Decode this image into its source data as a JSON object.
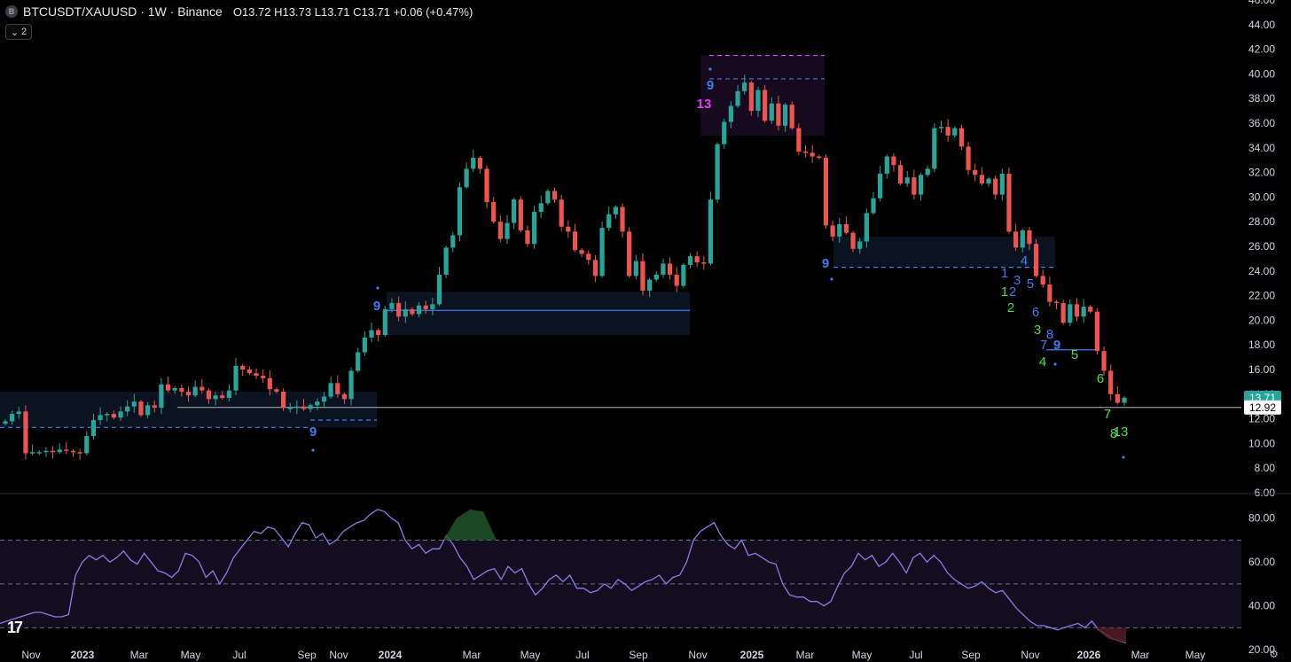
{
  "header": {
    "symbol_badge": "B",
    "symbol": "BTCUSDT/XAUUSD · 1W · Binance",
    "open_label": "O",
    "open": "13.72",
    "high_label": "H",
    "high": "13.73",
    "low_label": "L",
    "low": "13.71",
    "close_label": "C",
    "close": "13.71",
    "change": "+0.06 (+0.47%)",
    "collapse_count": "2"
  },
  "logo": "17",
  "colors": {
    "up": "#26a69a",
    "down": "#ef5350",
    "rsi": "#8c7ae6",
    "fib_blue": "#3d7cf4",
    "td_magenta": "#e040fb",
    "td_green": "#4cdf3f",
    "price_tag_green": "#26a69a"
  },
  "price_axis": [
    "46.00",
    "44.00",
    "42.00",
    "40.00",
    "38.00",
    "36.00",
    "34.00",
    "32.00",
    "30.00",
    "28.00",
    "26.00",
    "24.00",
    "22.00",
    "20.00",
    "18.00",
    "16.00",
    "14.00",
    "12.00",
    "10.00",
    "8.00",
    "6.00"
  ],
  "price_tags": {
    "current": "13.71",
    "line": "12.92"
  },
  "rsi_axis": [
    "80.00",
    "60.00",
    "40.00",
    "20.00"
  ],
  "time_axis": [
    "Nov",
    "2023",
    "Mar",
    "May",
    "Jul",
    "Sep",
    "Nov",
    "2024",
    "Mar",
    "May",
    "Jul",
    "Sep",
    "Nov",
    "2025",
    "Mar",
    "May",
    "Jul",
    "Sep",
    "Nov",
    "2026",
    "Mar",
    "May"
  ],
  "chart_data": {
    "type": "candlestick",
    "title": "BTCUSDT/XAUUSD · 1W · Binance",
    "ylim": [
      6,
      46
    ],
    "x_labels": [
      "Nov",
      "2023",
      "Mar",
      "May",
      "Jul",
      "Sep",
      "Nov",
      "2024",
      "Mar",
      "May",
      "Jul",
      "Sep",
      "Nov",
      "2025",
      "Mar",
      "May",
      "Jul",
      "Sep",
      "Nov",
      "2026",
      "Mar",
      "May"
    ],
    "closes": [
      11.8,
      12.4,
      12.6,
      9.2,
      9.3,
      9.3,
      9.4,
      9.3,
      9.5,
      9.4,
      9.3,
      9.2,
      10.6,
      11.9,
      12.3,
      12.4,
      12.1,
      12.6,
      13.0,
      13.4,
      12.3,
      13.1,
      12.9,
      14.8,
      14.3,
      14.5,
      14.2,
      13.9,
      14.6,
      14.3,
      13.6,
      13.9,
      13.7,
      14.3,
      16.3,
      16.0,
      15.7,
      15.5,
      15.3,
      14.4,
      14.2,
      12.9,
      12.9,
      13.0,
      12.8,
      13.1,
      13.4,
      13.8,
      14.9,
      14.0,
      13.6,
      15.9,
      17.4,
      18.6,
      19.2,
      18.8,
      20.9,
      21.4,
      20.3,
      20.9,
      20.5,
      21.2,
      20.9,
      21.3,
      23.7,
      25.9,
      26.9,
      30.8,
      32.3,
      33.2,
      32.3,
      29.6,
      28.0,
      26.6,
      27.9,
      29.8,
      27.3,
      26.2,
      28.8,
      29.5,
      30.5,
      29.8,
      27.6,
      27.2,
      25.7,
      25.4,
      24.9,
      23.6,
      27.5,
      28.6,
      29.2,
      27.2,
      23.6,
      24.8,
      22.4,
      23.3,
      23.7,
      24.6,
      23.7,
      22.8,
      24.5,
      25.2,
      24.7,
      24.6,
      29.8,
      34.3,
      36.1,
      37.4,
      38.6,
      39.3,
      37.0,
      38.7,
      36.2,
      37.6,
      35.8,
      37.5,
      35.6,
      33.7,
      33.6,
      33.3,
      33.2,
      27.7,
      26.8,
      27.8,
      27.1,
      25.8,
      26.4,
      28.7,
      29.9,
      31.9,
      33.3,
      32.6,
      31.1,
      31.6,
      30.2,
      31.8,
      32.3,
      35.6,
      35.7,
      35.0,
      35.6,
      34.1,
      32.2,
      31.8,
      31.1,
      31.5,
      30.2,
      31.9,
      27.2,
      25.9,
      27.3,
      26.2,
      23.6,
      22.9,
      21.5,
      21.4,
      19.8,
      21.3,
      20.3,
      21.1,
      20.7,
      17.5,
      15.9,
      14.0,
      13.3,
      13.71
    ],
    "rsi_values": [
      32,
      33,
      34,
      35,
      36,
      37,
      37,
      36,
      35,
      35,
      36,
      54,
      60,
      63,
      61,
      63,
      60,
      62,
      65,
      61,
      59,
      64,
      60,
      56,
      55,
      53,
      56,
      64,
      63,
      60,
      53,
      56,
      50,
      55,
      62,
      66,
      70,
      74,
      73,
      76,
      75,
      71,
      67,
      73,
      78,
      77,
      71,
      73,
      68,
      70,
      74,
      76,
      78,
      79,
      82,
      84,
      83,
      80,
      78,
      70,
      66,
      68,
      64,
      66,
      66,
      72,
      68,
      62,
      58,
      52,
      54,
      56,
      57,
      52,
      58,
      55,
      57,
      50,
      45,
      48,
      52,
      54,
      51,
      54,
      48,
      48,
      46,
      47,
      50,
      48,
      52,
      50,
      47,
      49,
      51,
      52,
      54,
      50,
      53,
      54,
      60,
      70,
      74,
      76,
      78,
      72,
      68,
      66,
      70,
      63,
      64,
      62,
      60,
      59,
      50,
      45,
      44,
      44,
      42,
      42,
      40,
      42,
      49,
      55,
      58,
      64,
      61,
      63,
      58,
      60,
      64,
      60,
      55,
      62,
      64,
      60,
      63,
      60,
      55,
      52,
      50,
      48,
      49,
      51,
      48,
      46,
      47,
      43,
      39,
      36,
      33,
      31,
      31,
      30,
      29,
      30,
      31,
      32,
      30,
      33,
      29,
      27,
      25,
      24,
      23
    ],
    "rsi_ylim": [
      18,
      90
    ],
    "rsi_bands": [
      30,
      50,
      70
    ],
    "levels": [
      {
        "kind": "current_price",
        "value": 13.71
      },
      {
        "kind": "horizontal",
        "value": 12.92
      }
    ],
    "td_labels": [
      {
        "text": "9",
        "color": "blue"
      },
      {
        "text": "9",
        "color": "blue"
      },
      {
        "text": "9",
        "color": "blue"
      },
      {
        "text": "13",
        "color": "magenta"
      },
      {
        "text": "9",
        "color": "blue"
      },
      {
        "text": "1",
        "color": "blue"
      },
      {
        "text": "2",
        "color": "blue"
      },
      {
        "text": "3",
        "color": "blue"
      },
      {
        "text": "4",
        "color": "blue"
      },
      {
        "text": "5",
        "color": "blue"
      },
      {
        "text": "6",
        "color": "blue"
      },
      {
        "text": "7",
        "color": "blue"
      },
      {
        "text": "8",
        "color": "blue"
      },
      {
        "text": "9",
        "color": "blue"
      },
      {
        "text": "1",
        "color": "green"
      },
      {
        "text": "2",
        "color": "green"
      },
      {
        "text": "3",
        "color": "green"
      },
      {
        "text": "4",
        "color": "green"
      },
      {
        "text": "5",
        "color": "green"
      },
      {
        "text": "6",
        "color": "green"
      },
      {
        "text": "7",
        "color": "green"
      },
      {
        "text": "8",
        "color": "green"
      },
      {
        "text": "13",
        "color": "green"
      }
    ]
  }
}
